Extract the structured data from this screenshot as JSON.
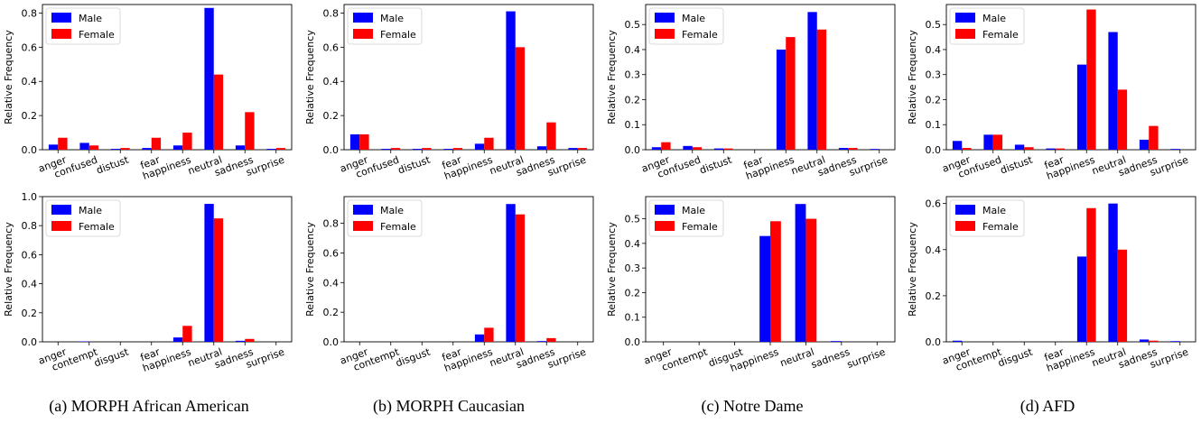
{
  "legend": {
    "male_label": "Male",
    "female_label": "Female",
    "male_color": "#0000ff",
    "female_color": "#ff0000"
  },
  "captions": [
    "(a) MORPH African American",
    "(b) MORPH Caucasian",
    "(c) Notre Dame",
    "(d) AFD"
  ],
  "chart_data": [
    {
      "type": "bar",
      "categories": [
        "anger",
        "confused",
        "distust",
        "fear",
        "happiness",
        "neutral",
        "sadness",
        "surprise"
      ],
      "series": [
        {
          "name": "Male",
          "values": [
            0.03,
            0.04,
            0.005,
            0.01,
            0.025,
            0.83,
            0.025,
            0.005
          ]
        },
        {
          "name": "Female",
          "values": [
            0.07,
            0.025,
            0.01,
            0.07,
            0.1,
            0.44,
            0.22,
            0.01
          ]
        }
      ],
      "ylabel": "Relative Frequency",
      "ylim": [
        0,
        0.85
      ],
      "yticks": [
        0.0,
        0.2,
        0.4,
        0.6,
        0.8
      ],
      "legend": "top-left"
    },
    {
      "type": "bar",
      "categories": [
        "anger",
        "confused",
        "distust",
        "fear",
        "happiness",
        "neutral",
        "sadness",
        "surprise"
      ],
      "series": [
        {
          "name": "Male",
          "values": [
            0.09,
            0.005,
            0.005,
            0.005,
            0.035,
            0.81,
            0.02,
            0.01
          ]
        },
        {
          "name": "Female",
          "values": [
            0.09,
            0.01,
            0.01,
            0.01,
            0.07,
            0.6,
            0.16,
            0.01
          ]
        }
      ],
      "ylabel": "Relative Frequency",
      "ylim": [
        0,
        0.85
      ],
      "yticks": [
        0.0,
        0.2,
        0.4,
        0.6,
        0.8
      ],
      "legend": "top-left"
    },
    {
      "type": "bar",
      "categories": [
        "anger",
        "confused",
        "distust",
        "fear",
        "happiness",
        "neutral",
        "sadness",
        "surprise"
      ],
      "series": [
        {
          "name": "Male",
          "values": [
            0.01,
            0.015,
            0.005,
            0,
            0.4,
            0.55,
            0.007,
            0.003
          ]
        },
        {
          "name": "Female",
          "values": [
            0.03,
            0.01,
            0.005,
            0,
            0.45,
            0.48,
            0.007,
            0
          ]
        }
      ],
      "ylabel": "Relative Frequency",
      "ylim": [
        0,
        0.58
      ],
      "yticks": [
        0.0,
        0.1,
        0.2,
        0.3,
        0.4,
        0.5
      ],
      "legend": "top-left"
    },
    {
      "type": "bar",
      "categories": [
        "anger",
        "confused",
        "distust",
        "fear",
        "happiness",
        "neutral",
        "sadness",
        "surprise"
      ],
      "series": [
        {
          "name": "Male",
          "values": [
            0.035,
            0.06,
            0.02,
            0.005,
            0.34,
            0.47,
            0.04,
            0.003
          ]
        },
        {
          "name": "Female",
          "values": [
            0.007,
            0.06,
            0.01,
            0.005,
            0.56,
            0.24,
            0.095,
            0
          ]
        }
      ],
      "ylabel": "Relative Frequency",
      "ylim": [
        0,
        0.58
      ],
      "yticks": [
        0.0,
        0.1,
        0.2,
        0.3,
        0.4,
        0.5
      ],
      "legend": "top-left"
    },
    {
      "type": "bar",
      "categories": [
        "anger",
        "contempt",
        "disgust",
        "fear",
        "happiness",
        "neutral",
        "sadness",
        "surprise"
      ],
      "series": [
        {
          "name": "Male",
          "values": [
            0,
            0.003,
            0,
            0,
            0.03,
            0.95,
            0.007,
            0
          ]
        },
        {
          "name": "Female",
          "values": [
            0,
            0,
            0,
            0,
            0.11,
            0.85,
            0.02,
            0
          ]
        }
      ],
      "ylabel": "Relative Frequency",
      "ylim": [
        0,
        1.0
      ],
      "yticks": [
        0.0,
        0.2,
        0.4,
        0.6,
        0.8,
        1.0
      ],
      "legend": "top-left"
    },
    {
      "type": "bar",
      "categories": [
        "anger",
        "contempt",
        "disgust",
        "fear",
        "happiness",
        "neutral",
        "sadness",
        "surprise"
      ],
      "series": [
        {
          "name": "Male",
          "values": [
            0,
            0,
            0,
            0,
            0.05,
            0.93,
            0.005,
            0
          ]
        },
        {
          "name": "Female",
          "values": [
            0,
            0,
            0,
            0,
            0.095,
            0.86,
            0.025,
            0
          ]
        }
      ],
      "ylabel": "Relative Frequency",
      "ylim": [
        0,
        0.98
      ],
      "yticks": [
        0.0,
        0.2,
        0.4,
        0.6,
        0.8
      ],
      "legend": "top-left"
    },
    {
      "type": "bar",
      "categories": [
        "anger",
        "contempt",
        "disgust",
        "happiness",
        "neutral",
        "sadness",
        "surprise"
      ],
      "series": [
        {
          "name": "Male",
          "values": [
            0,
            0,
            0,
            0.43,
            0.56,
            0.003,
            0
          ]
        },
        {
          "name": "Female",
          "values": [
            0,
            0,
            0,
            0.49,
            0.5,
            0,
            0
          ]
        }
      ],
      "ylabel": "Relative Frequency",
      "ylim": [
        0,
        0.59
      ],
      "yticks": [
        0.0,
        0.1,
        0.2,
        0.3,
        0.4,
        0.5
      ],
      "legend": "top-left"
    },
    {
      "type": "bar",
      "categories": [
        "anger",
        "contempt",
        "disgust",
        "fear",
        "happiness",
        "neutral",
        "sadness",
        "surprise"
      ],
      "series": [
        {
          "name": "Male",
          "values": [
            0.005,
            0,
            0,
            0,
            0.37,
            0.6,
            0.01,
            0.003
          ]
        },
        {
          "name": "Female",
          "values": [
            0,
            0,
            0,
            0,
            0.58,
            0.4,
            0.005,
            0
          ]
        }
      ],
      "ylabel": "Relative Frequency",
      "ylim": [
        0,
        0.63
      ],
      "yticks": [
        0.0,
        0.2,
        0.4,
        0.6
      ],
      "legend": "top-left"
    }
  ]
}
